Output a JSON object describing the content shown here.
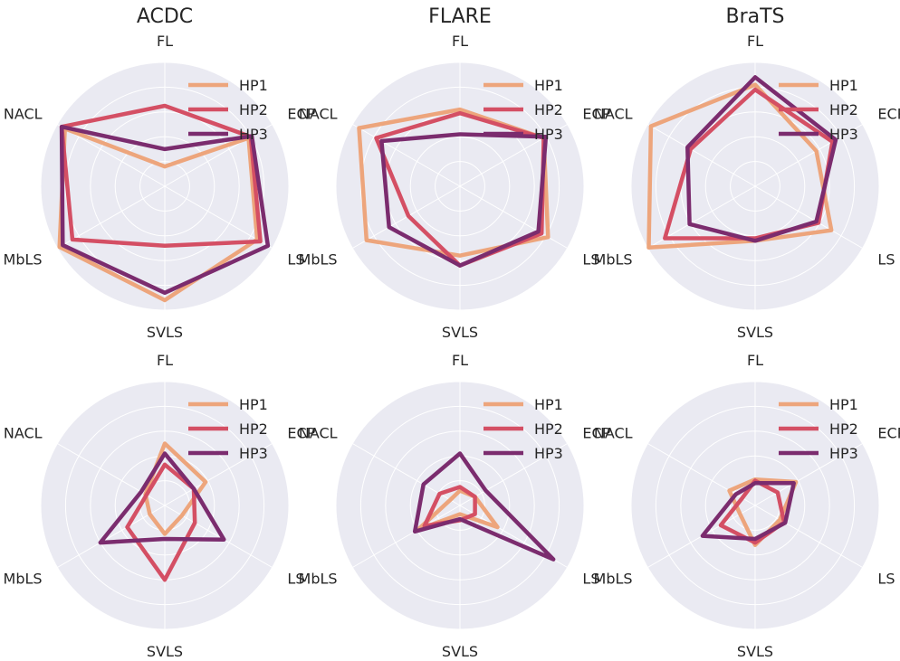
{
  "chart_data": {
    "type": "radar",
    "axes": [
      "FL",
      "ECP",
      "LS",
      "SVLS",
      "MbLS",
      "NACL"
    ],
    "rmax": 1.0,
    "grid_rings": [
      0.2,
      0.4,
      0.6,
      0.8,
      1.0
    ],
    "grid": true,
    "legend_position": "top-right",
    "series_names": [
      "HP1",
      "HP2",
      "HP3"
    ],
    "colors": {
      "HP1": "#eda57c",
      "HP2": "#d44f64",
      "HP3": "#7b2c6e",
      "background": "#eaeaf2",
      "gridline": "#ffffff"
    },
    "panels": [
      {
        "title": "ACDC",
        "series": [
          {
            "name": "HP1",
            "values": [
              0.16,
              0.78,
              0.86,
              0.92,
              0.98,
              0.93
            ]
          },
          {
            "name": "HP2",
            "values": [
              0.65,
              0.8,
              0.89,
              0.48,
              0.86,
              0.96
            ]
          },
          {
            "name": "HP3",
            "values": [
              0.3,
              0.81,
              0.96,
              0.86,
              0.95,
              0.96
            ]
          }
        ]
      },
      {
        "title": "FLARE",
        "series": [
          {
            "name": "HP1",
            "values": [
              0.62,
              0.78,
              0.82,
              0.56,
              0.87,
              0.94
            ]
          },
          {
            "name": "HP2",
            "values": [
              0.59,
              0.78,
              0.76,
              0.64,
              0.48,
              0.78
            ]
          },
          {
            "name": "HP3",
            "values": [
              0.42,
              0.8,
              0.73,
              0.64,
              0.66,
              0.73
            ]
          }
        ]
      },
      {
        "title": "BraTS",
        "series": [
          {
            "name": "HP1",
            "values": [
              0.82,
              0.57,
              0.71,
              0.44,
              0.99,
              0.97
            ]
          },
          {
            "name": "HP2",
            "values": [
              0.78,
              0.72,
              0.59,
              0.42,
              0.84,
              0.6
            ]
          },
          {
            "name": "HP3",
            "values": [
              0.88,
              0.75,
              0.57,
              0.44,
              0.61,
              0.63
            ]
          }
        ]
      },
      {
        "title": "",
        "series": [
          {
            "name": "HP1",
            "values": [
              0.5,
              0.38,
              0.16,
              0.23,
              0.14,
              0.18
            ]
          },
          {
            "name": "HP2",
            "values": [
              0.33,
              0.27,
              0.28,
              0.6,
              0.35,
              0.17
            ]
          },
          {
            "name": "HP3",
            "values": [
              0.42,
              0.27,
              0.55,
              0.27,
              0.6,
              0.22
            ]
          }
        ]
      },
      {
        "title": "",
        "series": [
          {
            "name": "HP1",
            "values": [
              0.12,
              0.14,
              0.35,
              0.07,
              0.39,
              0.09
            ]
          },
          {
            "name": "HP2",
            "values": [
              0.15,
              0.14,
              0.14,
              0.12,
              0.33,
              0.19
            ]
          },
          {
            "name": "HP3",
            "values": [
              0.42,
              0.24,
              0.87,
              0.11,
              0.42,
              0.34
            ]
          }
        ]
      },
      {
        "title": "",
        "series": [
          {
            "name": "HP1",
            "values": [
              0.21,
              0.38,
              0.23,
              0.32,
              0.14,
              0.24
            ]
          },
          {
            "name": "HP2",
            "values": [
              0.2,
              0.21,
              0.27,
              0.3,
              0.32,
              0.12
            ]
          },
          {
            "name": "HP3",
            "values": [
              0.18,
              0.36,
              0.28,
              0.27,
              0.49,
              0.18
            ]
          }
        ]
      }
    ]
  }
}
